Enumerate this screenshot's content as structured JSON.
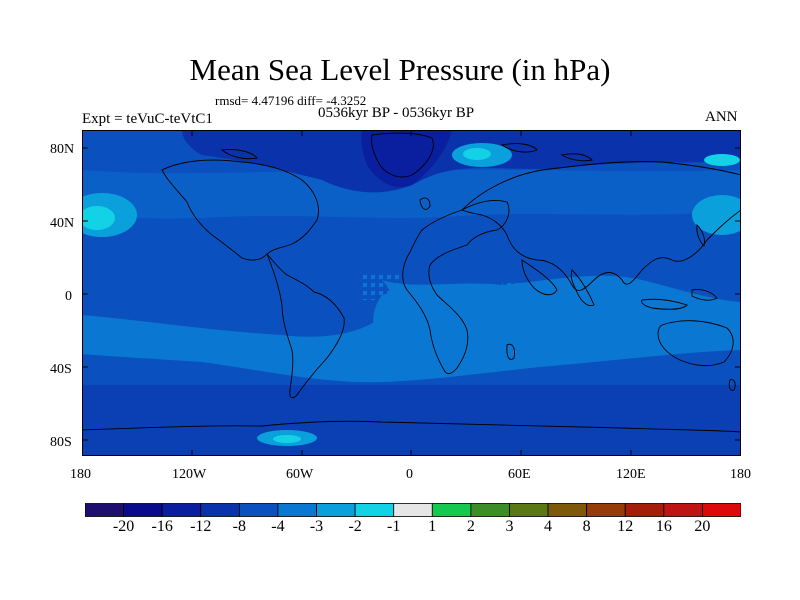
{
  "title": "Mean Sea Level Pressure (in hPa)",
  "stats": "rmsd= 4.47196 diff= -4.3252",
  "period": "0536kyr BP - 0536kyr BP",
  "experiment": "Expt = teVuC-teVtC1",
  "season": "ANN",
  "lat_labels": [
    "80N",
    "40N",
    "0",
    "40S",
    "80S"
  ],
  "lon_labels": [
    "180",
    "120W",
    "60W",
    "0",
    "60E",
    "120E",
    "180"
  ],
  "colorbar": {
    "colors": [
      "#1e0f6e",
      "#0a0a8c",
      "#0a1ea0",
      "#0a32aa",
      "#0a50be",
      "#0a78d2",
      "#0aa0dc",
      "#14d2e6",
      "#e6e6e6",
      "#14c850",
      "#3c8c28",
      "#5a7814",
      "#7d5a0a",
      "#963c0a",
      "#a51e0a",
      "#be1414",
      "#dc0a0a"
    ],
    "labels": [
      "-20",
      "-16",
      "-12",
      "-8",
      "-4",
      "-3",
      "-2",
      "-1",
      "1",
      "2",
      "3",
      "4",
      "8",
      "12",
      "16",
      "20"
    ]
  }
}
